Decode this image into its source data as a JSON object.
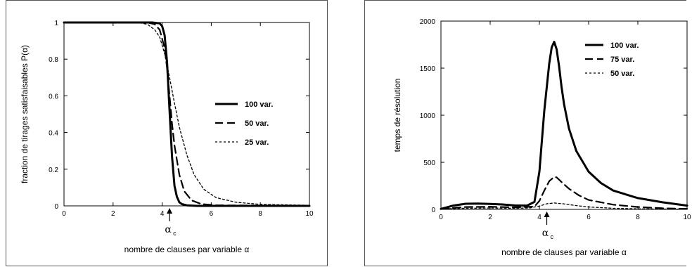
{
  "chart_data": [
    {
      "type": "line",
      "xlabel": "nombre de clauses par variable α",
      "ylabel": "fraction de tirages satisfaisables P(α)",
      "xlim": [
        0,
        10
      ],
      "ylim": [
        0,
        1
      ],
      "xticks": [
        "0",
        "2",
        "4",
        "6",
        "8",
        "10"
      ],
      "yticks": [
        "0",
        "0.2",
        "0.4",
        "0.6",
        "0.8",
        "1"
      ],
      "legend_position": "right",
      "annotation": {
        "symbol": "α",
        "subscript": "c",
        "x": 4.3
      },
      "series": [
        {
          "name": "100 var.",
          "style": "solid",
          "x": [
            0,
            3.6,
            3.9,
            4.0,
            4.1,
            4.2,
            4.3,
            4.4,
            4.5,
            4.6,
            4.7,
            4.8,
            5.0,
            5.4,
            6.0,
            10
          ],
          "y": [
            1,
            1,
            0.995,
            0.98,
            0.93,
            0.78,
            0.52,
            0.27,
            0.11,
            0.05,
            0.02,
            0.01,
            0.003,
            0,
            0,
            0
          ]
        },
        {
          "name": "50 var.",
          "style": "dashed",
          "x": [
            0,
            3.4,
            3.7,
            3.9,
            4.1,
            4.2,
            4.3,
            4.4,
            4.5,
            4.7,
            4.9,
            5.2,
            5.6,
            6.2,
            10
          ],
          "y": [
            1,
            1,
            0.99,
            0.96,
            0.86,
            0.75,
            0.6,
            0.45,
            0.33,
            0.17,
            0.08,
            0.03,
            0.01,
            0.003,
            0
          ]
        },
        {
          "name": "25 var.",
          "style": "dotted",
          "x": [
            0,
            3.0,
            3.4,
            3.7,
            3.9,
            4.1,
            4.3,
            4.5,
            4.7,
            5.0,
            5.3,
            5.7,
            6.2,
            7.0,
            8.0,
            10
          ],
          "y": [
            1,
            1,
            0.99,
            0.96,
            0.92,
            0.83,
            0.7,
            0.56,
            0.43,
            0.28,
            0.17,
            0.09,
            0.045,
            0.02,
            0.008,
            0.003
          ]
        }
      ]
    },
    {
      "type": "line",
      "xlabel": "nombre de clauses par variable α",
      "ylabel": "temps de résolution",
      "xlim": [
        0,
        10
      ],
      "ylim": [
        0,
        2000
      ],
      "xticks": [
        "0",
        "2",
        "4",
        "6",
        "8",
        "10"
      ],
      "yticks": [
        "0",
        "500",
        "1000",
        "1500",
        "2000"
      ],
      "legend_position": "top-right",
      "annotation": {
        "symbol": "α",
        "subscript": "c",
        "x": 4.3
      },
      "series": [
        {
          "name": "100 var.",
          "style": "solid",
          "x": [
            0,
            0.5,
            1.0,
            1.5,
            2.0,
            2.5,
            3.0,
            3.5,
            3.8,
            4.0,
            4.2,
            4.4,
            4.5,
            4.6,
            4.7,
            4.8,
            4.9,
            5.0,
            5.2,
            5.5,
            6.0,
            6.5,
            7.0,
            8.0,
            9.0,
            10
          ],
          "y": [
            5,
            40,
            60,
            62,
            58,
            52,
            42,
            40,
            80,
            400,
            1050,
            1550,
            1720,
            1780,
            1700,
            1520,
            1300,
            1120,
            860,
            620,
            400,
            280,
            200,
            120,
            75,
            40
          ]
        },
        {
          "name": "75 var.",
          "style": "dashed",
          "x": [
            0,
            1.0,
            2.0,
            3.0,
            3.8,
            4.0,
            4.2,
            4.4,
            4.6,
            4.7,
            4.9,
            5.2,
            5.6,
            6.0,
            7.0,
            8.0,
            9.0,
            10
          ],
          "y": [
            5,
            25,
            28,
            22,
            30,
            90,
            200,
            300,
            345,
            340,
            290,
            220,
            150,
            100,
            50,
            25,
            12,
            6
          ]
        },
        {
          "name": "50 var.",
          "style": "dotted",
          "x": [
            0,
            1.0,
            2.0,
            3.0,
            3.6,
            4.0,
            4.3,
            4.6,
            5.0,
            5.5,
            6.0,
            7.0,
            8.0,
            10
          ],
          "y": [
            5,
            12,
            14,
            12,
            15,
            35,
            60,
            68,
            58,
            40,
            25,
            12,
            6,
            2
          ]
        }
      ]
    }
  ]
}
